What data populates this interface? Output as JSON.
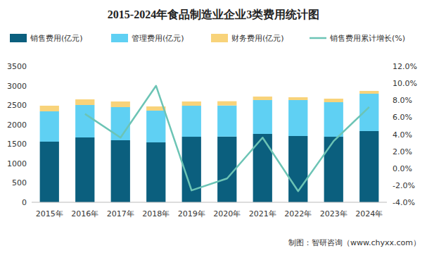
{
  "chart_data": {
    "type": "bar",
    "title": "2015-2024年食品制造业企业3类费用统计图",
    "source": "制图：智研咨询（www.chyxx.com）",
    "categories": [
      "2015年",
      "2016年",
      "2017年",
      "2018年",
      "2019年",
      "2020年",
      "2021年",
      "2022年",
      "2023年",
      "2024年"
    ],
    "stacked": true,
    "grid": false,
    "legend": "top",
    "series": [
      {
        "name": "销售费用(亿元)",
        "type": "bar",
        "color": "#0b5f7e",
        "values": [
          1560,
          1668,
          1596,
          1541,
          1686,
          1690,
          1759,
          1705,
          1686,
          1832
        ]
      },
      {
        "name": "管理费用(亿元)",
        "type": "bar",
        "color": "#5fd0f3",
        "values": [
          780,
          835,
          852,
          817,
          798,
          800,
          871,
          925,
          889,
          961
        ]
      },
      {
        "name": "财务费用(亿元)",
        "type": "bar",
        "color": "#f8d37a",
        "values": [
          145,
          145,
          145,
          108,
          109,
          110,
          90,
          72,
          91,
          72
        ]
      },
      {
        "name": "销售费用累计增长(%)",
        "type": "line",
        "axis": "y2",
        "color": "#6cc4b5",
        "values": [
          null,
          6.4,
          3.6,
          9.7,
          -2.6,
          -1.2,
          3.6,
          -2.7,
          3.2,
          7.2
        ]
      }
    ],
    "ylim": [
      0,
      3500
    ],
    "yticks": [
      0,
      500,
      1000,
      1500,
      2000,
      2500,
      3000,
      3500
    ],
    "y2lim": [
      -4,
      12
    ],
    "y2ticks": [
      {
        "value": -4,
        "label": "-4.0%"
      },
      {
        "value": -2,
        "label": "-2.0%"
      },
      {
        "value": 0,
        "label": "0.0%"
      },
      {
        "value": 2,
        "label": "2.0%"
      },
      {
        "value": 4,
        "label": "4.0%"
      },
      {
        "value": 6,
        "label": "6.0%"
      },
      {
        "value": 8,
        "label": "8.0%"
      },
      {
        "value": 10,
        "label": "10.0%"
      },
      {
        "value": 12,
        "label": "12.0%"
      }
    ]
  }
}
